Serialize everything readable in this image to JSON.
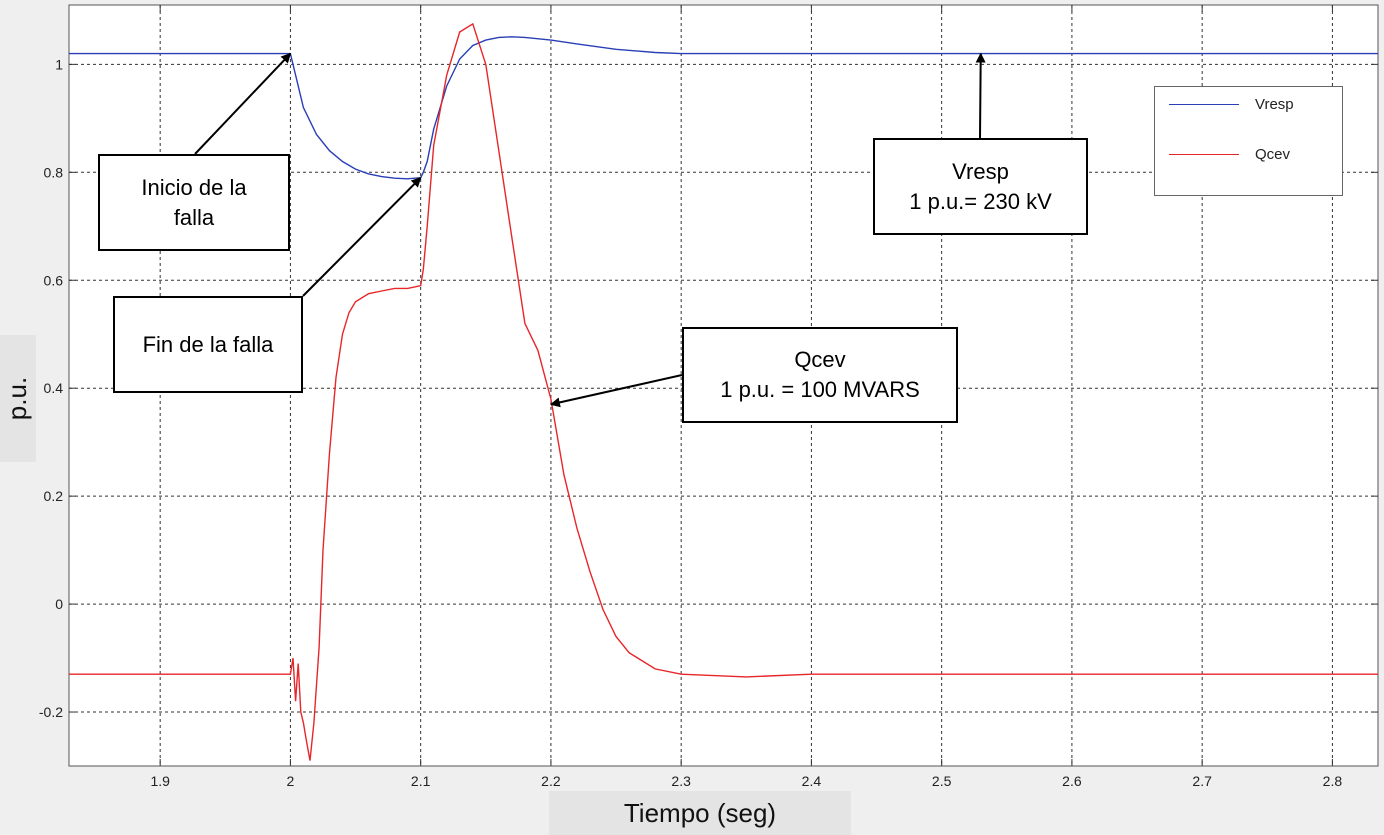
{
  "chart_data": {
    "type": "line",
    "xlabel": "Tiempo (seg)",
    "ylabel": "p.u.",
    "xlim": [
      1.83,
      2.835
    ],
    "ylim": [
      -0.3,
      1.11
    ],
    "xticks": [
      1.9,
      2,
      2.1,
      2.2,
      2.3,
      2.4,
      2.5,
      2.6,
      2.7,
      2.8
    ],
    "yticks": [
      -0.2,
      0,
      0.2,
      0.4,
      0.6,
      0.8,
      1
    ],
    "grid": true,
    "legend_position": "top-right",
    "series": [
      {
        "name": "Vresp",
        "color": "#2a3fb5",
        "x": [
          1.83,
          1.9,
          2.0,
          2.005,
          2.01,
          2.02,
          2.03,
          2.04,
          2.05,
          2.06,
          2.07,
          2.08,
          2.09,
          2.1,
          2.102,
          2.105,
          2.11,
          2.12,
          2.13,
          2.14,
          2.15,
          2.16,
          2.17,
          2.18,
          2.2,
          2.22,
          2.25,
          2.28,
          2.3,
          2.4,
          2.5,
          2.6,
          2.7,
          2.835
        ],
        "y": [
          1.02,
          1.02,
          1.02,
          0.97,
          0.92,
          0.87,
          0.84,
          0.82,
          0.806,
          0.797,
          0.792,
          0.789,
          0.788,
          0.79,
          0.8,
          0.82,
          0.88,
          0.96,
          1.01,
          1.035,
          1.045,
          1.05,
          1.051,
          1.05,
          1.045,
          1.038,
          1.028,
          1.022,
          1.02,
          1.02,
          1.02,
          1.02,
          1.02,
          1.02
        ]
      },
      {
        "name": "Qcev",
        "color": "#e8262a",
        "x": [
          1.83,
          1.9,
          1.95,
          2.0,
          2.002,
          2.004,
          2.006,
          2.008,
          2.01,
          2.012,
          2.015,
          2.018,
          2.02,
          2.022,
          2.025,
          2.03,
          2.035,
          2.04,
          2.045,
          2.05,
          2.06,
          2.07,
          2.08,
          2.09,
          2.1,
          2.102,
          2.105,
          2.11,
          2.12,
          2.13,
          2.14,
          2.15,
          2.16,
          2.17,
          2.18,
          2.19,
          2.2,
          2.21,
          2.22,
          2.23,
          2.24,
          2.25,
          2.26,
          2.28,
          2.3,
          2.35,
          2.4,
          2.5,
          2.6,
          2.7,
          2.835
        ],
        "y": [
          -0.13,
          -0.13,
          -0.13,
          -0.13,
          -0.1,
          -0.18,
          -0.11,
          -0.2,
          -0.22,
          -0.25,
          -0.29,
          -0.22,
          -0.15,
          -0.08,
          0.1,
          0.28,
          0.42,
          0.5,
          0.54,
          0.56,
          0.575,
          0.58,
          0.585,
          0.585,
          0.59,
          0.62,
          0.7,
          0.85,
          0.98,
          1.06,
          1.075,
          1.0,
          0.84,
          0.68,
          0.52,
          0.47,
          0.38,
          0.24,
          0.14,
          0.06,
          -0.01,
          -0.06,
          -0.09,
          -0.12,
          -0.13,
          -0.135,
          -0.13,
          -0.13,
          -0.13,
          -0.13,
          -0.13
        ]
      }
    ],
    "annotations": [
      {
        "id": "inicio",
        "lines": [
          "Inicio de la",
          "falla"
        ],
        "target": [
          2.0,
          1.02
        ]
      },
      {
        "id": "fin",
        "lines": [
          "Fin de la falla"
        ],
        "target": [
          2.1,
          0.79
        ]
      },
      {
        "id": "qcev",
        "lines": [
          "Qcev",
          "1 p.u. = 100 MVARS"
        ],
        "target": [
          2.2,
          0.37
        ]
      },
      {
        "id": "vresp",
        "lines": [
          "Vresp",
          "1 p.u.= 230 kV"
        ],
        "target": [
          2.53,
          1.02
        ]
      }
    ]
  }
}
